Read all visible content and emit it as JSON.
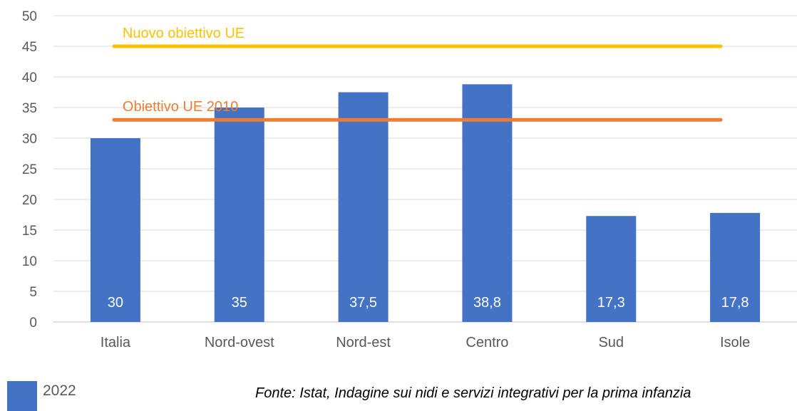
{
  "chart_data": {
    "type": "bar",
    "categories": [
      "Italia",
      "Nord-ovest",
      "Nord-est",
      "Centro",
      "Sud",
      "Isole"
    ],
    "series": [
      {
        "name": "2022",
        "values": [
          30,
          35,
          37.5,
          38.8,
          17.3,
          17.8
        ],
        "color": "#4472C4"
      }
    ],
    "data_labels": [
      "30",
      "35",
      "37,5",
      "38,8",
      "17,3",
      "17,8"
    ],
    "reference_lines": [
      {
        "label": "Nuovo obiettivo UE",
        "value": 45,
        "color": "#FFC000"
      },
      {
        "label": "Obiettivo UE 2010",
        "value": 33,
        "color": "#ED7D31"
      }
    ],
    "yticks": [
      "0",
      "5",
      "10",
      "15",
      "20",
      "25",
      "30",
      "35",
      "40",
      "45",
      "50"
    ],
    "ylim": [
      0,
      50
    ],
    "grid": true,
    "legend_position": "bottom-left"
  },
  "legend": {
    "label": "2022"
  },
  "source": "Fonte: Istat, Indagine sui nidi e servizi integrativi per la prima infanzia"
}
